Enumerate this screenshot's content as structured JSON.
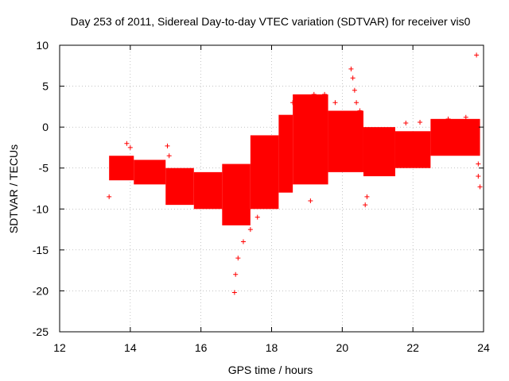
{
  "chart_data": {
    "type": "scatter",
    "title": "Day 253 of 2011, Sidereal Day-to-day VTEC variation (SDTVAR) for receiver vis0",
    "xlabel": "GPS time / hours",
    "ylabel": "SDTVAR / TECUs",
    "xlim": [
      12,
      24
    ],
    "ylim": [
      -25,
      10
    ],
    "grid": true,
    "marker": "+",
    "xticks": [
      12,
      14,
      16,
      18,
      20,
      22,
      24
    ],
    "xtick_labels": [
      "12",
      "14",
      "16",
      "18",
      "20",
      "22",
      "24"
    ],
    "yticks": [
      10,
      5,
      0,
      -5,
      -10,
      -15,
      -20,
      -25
    ],
    "ytick_labels": [
      "10",
      "5",
      "0",
      "-5",
      "-10",
      "-15",
      "-20",
      "-25"
    ],
    "series": [
      {
        "name": "SDTVAR",
        "color": "#ff0000",
        "bands": [
          {
            "x": [
              13.4,
              14.1
            ],
            "y_low": -6.5,
            "y_high": -3.5
          },
          {
            "x": [
              14.1,
              15.0
            ],
            "y_low": -7.0,
            "y_high": -4.0
          },
          {
            "x": [
              15.0,
              15.8
            ],
            "y_low": -9.5,
            "y_high": -5.0
          },
          {
            "x": [
              15.8,
              16.6
            ],
            "y_low": -10.0,
            "y_high": -5.5
          },
          {
            "x": [
              16.6,
              17.4
            ],
            "y_low": -12.0,
            "y_high": -4.5
          },
          {
            "x": [
              17.4,
              18.2
            ],
            "y_low": -10.0,
            "y_high": -1.0
          },
          {
            "x": [
              18.2,
              18.6
            ],
            "y_low": -8.0,
            "y_high": 1.5
          },
          {
            "x": [
              18.6,
              19.6
            ],
            "y_low": -7.0,
            "y_high": 4.0
          },
          {
            "x": [
              19.6,
              20.6
            ],
            "y_low": -5.5,
            "y_high": 2.0
          },
          {
            "x": [
              20.6,
              21.5
            ],
            "y_low": -6.0,
            "y_high": 0.0
          },
          {
            "x": [
              21.5,
              22.5
            ],
            "y_low": -5.0,
            "y_high": -0.5
          },
          {
            "x": [
              22.5,
              23.9
            ],
            "y_low": -3.5,
            "y_high": 1.0
          }
        ],
        "points": [
          {
            "x": 13.4,
            "y": -8.5
          },
          {
            "x": 13.9,
            "y": -2.0
          },
          {
            "x": 14.0,
            "y": -2.5
          },
          {
            "x": 15.05,
            "y": -2.3
          },
          {
            "x": 15.1,
            "y": -3.5
          },
          {
            "x": 16.95,
            "y": -20.2
          },
          {
            "x": 16.98,
            "y": -18.0
          },
          {
            "x": 17.05,
            "y": -16.0
          },
          {
            "x": 17.2,
            "y": -14.0
          },
          {
            "x": 17.4,
            "y": -12.5
          },
          {
            "x": 17.6,
            "y": -11.0
          },
          {
            "x": 17.9,
            "y": -5.0
          },
          {
            "x": 18.3,
            "y": 0.5
          },
          {
            "x": 18.6,
            "y": 3.0
          },
          {
            "x": 19.1,
            "y": -9.0
          },
          {
            "x": 19.2,
            "y": 4.0
          },
          {
            "x": 19.5,
            "y": 4.0
          },
          {
            "x": 19.8,
            "y": 3.0
          },
          {
            "x": 20.2,
            "y": 1.5
          },
          {
            "x": 20.25,
            "y": 7.1
          },
          {
            "x": 20.3,
            "y": 6.0
          },
          {
            "x": 20.35,
            "y": 4.5
          },
          {
            "x": 20.4,
            "y": 3.0
          },
          {
            "x": 20.5,
            "y": 2.0
          },
          {
            "x": 20.65,
            "y": -9.5
          },
          {
            "x": 20.7,
            "y": -8.5
          },
          {
            "x": 21.8,
            "y": 0.5
          },
          {
            "x": 22.2,
            "y": 0.6
          },
          {
            "x": 23.0,
            "y": 1.0
          },
          {
            "x": 23.5,
            "y": 1.2
          },
          {
            "x": 23.8,
            "y": 8.8
          },
          {
            "x": 23.85,
            "y": -4.5
          },
          {
            "x": 23.85,
            "y": -6.0
          },
          {
            "x": 23.9,
            "y": -7.3
          }
        ]
      }
    ]
  }
}
